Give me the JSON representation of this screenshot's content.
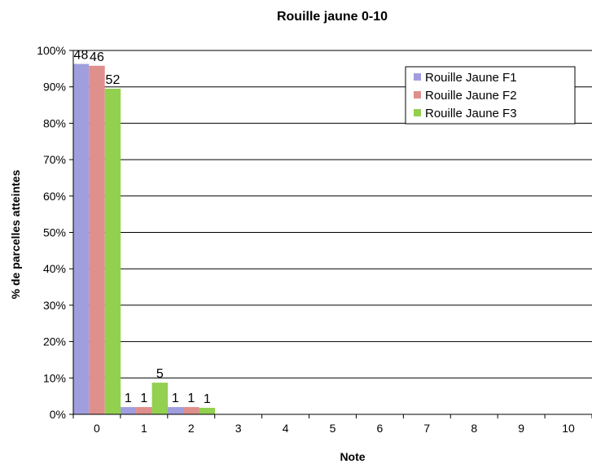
{
  "chart_data": {
    "type": "bar",
    "title": "Rouille jaune 0-10",
    "xlabel": "Note",
    "ylabel": "% de parcelles atteintes",
    "categories": [
      "0",
      "1",
      "2",
      "3",
      "4",
      "5",
      "6",
      "7",
      "8",
      "9",
      "10"
    ],
    "ylim": [
      0,
      1
    ],
    "yticks": [
      "0%",
      "10%",
      "20%",
      "30%",
      "40%",
      "50%",
      "60%",
      "70%",
      "80%",
      "90%",
      "100%"
    ],
    "grid": true,
    "legend_position": "top-right",
    "series": [
      {
        "name": "Rouille Jaune F1",
        "color": "#a09edf",
        "values": [
          0.963,
          0.02,
          0.02,
          0,
          0,
          0,
          0,
          0,
          0,
          0,
          0
        ],
        "labels": [
          "48",
          "1",
          "1",
          "",
          "",
          "",
          "",
          "",
          "",
          "",
          ""
        ]
      },
      {
        "name": "Rouille Jaune F2",
        "color": "#df8f8c",
        "values": [
          0.958,
          0.02,
          0.02,
          0,
          0,
          0,
          0,
          0,
          0,
          0,
          0
        ],
        "labels": [
          "46",
          "1",
          "1",
          "",
          "",
          "",
          "",
          "",
          "",
          "",
          ""
        ]
      },
      {
        "name": "Rouille Jaune F3",
        "color": "#92d050",
        "values": [
          0.895,
          0.087,
          0.018,
          0,
          0,
          0,
          0,
          0,
          0,
          0,
          0
        ],
        "labels": [
          "52",
          "5",
          "1",
          "",
          "",
          "",
          "",
          "",
          "",
          "",
          ""
        ]
      }
    ]
  }
}
